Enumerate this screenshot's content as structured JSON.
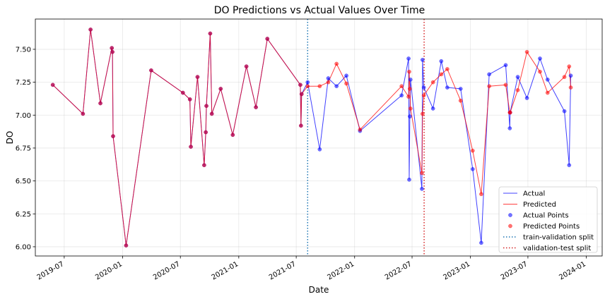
{
  "chart_data": {
    "type": "line",
    "title": "DO Predictions vs Actual Values Over Time",
    "xlabel": "Date",
    "ylabel": "DO",
    "xlim": [
      "2019-04-01",
      "2024-02-20"
    ],
    "ylim": [
      5.93,
      7.73
    ],
    "x_ticks": [
      "2019-07-01",
      "2020-01-01",
      "2020-07-01",
      "2021-01-01",
      "2021-07-01",
      "2022-01-01",
      "2022-07-01",
      "2023-01-01",
      "2023-07-01",
      "2024-01-01"
    ],
    "x_tick_labels": [
      "2019-07",
      "2020-01",
      "2020-07",
      "2021-01",
      "2021-07",
      "2022-01",
      "2022-07",
      "2023-01",
      "2023-07",
      "2024-01"
    ],
    "y_ticks": [
      6.0,
      6.25,
      6.5,
      6.75,
      7.0,
      7.25,
      7.5
    ],
    "y_tick_labels": [
      "6.00",
      "6.25",
      "6.50",
      "6.75",
      "7.00",
      "7.25",
      "7.50"
    ],
    "grid": true,
    "legend_position": "lower right",
    "colors": {
      "actual": "#0000ff",
      "predicted": "#ff0000",
      "train_split": "#1f77b4",
      "test_split": "#d62728"
    },
    "legend": [
      "Actual",
      "Predicted",
      "Actual Points",
      "Predicted Points",
      "train-validation split",
      "validation-test split"
    ],
    "splits": [
      {
        "name": "train-validation split",
        "x": "2021-08-06",
        "color": "#1f77b4"
      },
      {
        "name": "validation-test split",
        "x": "2022-08-08",
        "color": "#d62728"
      }
    ],
    "series": [
      {
        "name": "Actual",
        "x": [
          "2019-05-26",
          "2019-08-29",
          "2019-09-22",
          "2019-10-23",
          "2019-11-28",
          "2019-11-30",
          "2019-12-02",
          "2020-01-12",
          "2020-03-31",
          "2020-07-09",
          "2020-07-31",
          "2020-08-03",
          "2020-08-24",
          "2020-09-14",
          "2020-09-19",
          "2020-09-21",
          "2020-10-03",
          "2020-10-08",
          "2020-11-05",
          "2020-12-13",
          "2021-01-25",
          "2021-02-24",
          "2021-04-01",
          "2021-07-14",
          "2021-07-16",
          "2021-07-18",
          "2021-08-06",
          "2021-09-13",
          "2021-10-10",
          "2021-11-05",
          "2021-12-06",
          "2022-01-18",
          "2022-05-29",
          "2022-06-20",
          "2022-06-22",
          "2022-06-24",
          "2022-06-26",
          "2022-08-01",
          "2022-08-03",
          "2022-08-07",
          "2022-09-05",
          "2022-10-01",
          "2022-10-20",
          "2022-12-01",
          "2023-01-08",
          "2023-02-04",
          "2023-03-01",
          "2023-04-22",
          "2023-05-05",
          "2023-05-06",
          "2023-05-30",
          "2023-06-28",
          "2023-08-08",
          "2023-09-01",
          "2023-10-24",
          "2023-11-08",
          "2023-11-13"
        ],
        "values": [
          7.23,
          7.01,
          7.65,
          7.09,
          7.51,
          7.48,
          6.84,
          6.01,
          7.34,
          7.17,
          7.12,
          6.76,
          7.29,
          6.62,
          6.87,
          7.07,
          7.62,
          7.01,
          7.2,
          6.85,
          7.37,
          7.06,
          7.58,
          7.23,
          6.92,
          7.16,
          7.25,
          6.74,
          7.28,
          7.22,
          7.3,
          6.88,
          7.15,
          7.43,
          6.51,
          6.99,
          7.27,
          6.44,
          7.42,
          7.21,
          7.05,
          7.41,
          7.21,
          7.2,
          6.59,
          6.03,
          7.31,
          7.38,
          6.9,
          7.02,
          7.29,
          7.13,
          7.43,
          7.27,
          7.03,
          6.62,
          7.3
        ]
      },
      {
        "name": "Predicted",
        "x": [
          "2019-05-26",
          "2019-08-29",
          "2019-09-22",
          "2019-10-23",
          "2019-11-28",
          "2019-11-30",
          "2019-12-02",
          "2020-01-12",
          "2020-03-31",
          "2020-07-09",
          "2020-07-31",
          "2020-08-03",
          "2020-08-24",
          "2020-09-14",
          "2020-09-19",
          "2020-09-21",
          "2020-10-03",
          "2020-10-08",
          "2020-11-05",
          "2020-12-13",
          "2021-01-25",
          "2021-02-24",
          "2021-04-01",
          "2021-07-14",
          "2021-07-16",
          "2021-07-18",
          "2021-08-06",
          "2021-09-13",
          "2021-10-10",
          "2021-11-05",
          "2021-12-06",
          "2022-01-18",
          "2022-05-29",
          "2022-06-20",
          "2022-06-22",
          "2022-06-24",
          "2022-06-26",
          "2022-08-01",
          "2022-08-03",
          "2022-08-07",
          "2022-09-05",
          "2022-10-01",
          "2022-10-20",
          "2022-12-01",
          "2023-01-08",
          "2023-02-04",
          "2023-03-01",
          "2023-04-22",
          "2023-05-05",
          "2023-05-06",
          "2023-05-30",
          "2023-06-28",
          "2023-08-08",
          "2023-09-01",
          "2023-10-24",
          "2023-11-08",
          "2023-11-13"
        ],
        "values": [
          7.23,
          7.01,
          7.65,
          7.09,
          7.51,
          7.48,
          6.84,
          6.01,
          7.34,
          7.17,
          7.12,
          6.76,
          7.29,
          6.62,
          6.87,
          7.07,
          7.62,
          7.01,
          7.2,
          6.85,
          7.37,
          7.06,
          7.58,
          7.23,
          6.92,
          7.16,
          7.22,
          7.22,
          7.25,
          7.39,
          7.24,
          6.89,
          7.22,
          7.14,
          7.33,
          7.2,
          7.05,
          6.56,
          7.01,
          7.15,
          7.25,
          7.31,
          7.35,
          7.11,
          6.73,
          6.4,
          7.22,
          7.23,
          7.02,
          7.02,
          7.19,
          7.48,
          7.33,
          7.17,
          7.29,
          7.37,
          7.21
        ]
      }
    ]
  }
}
